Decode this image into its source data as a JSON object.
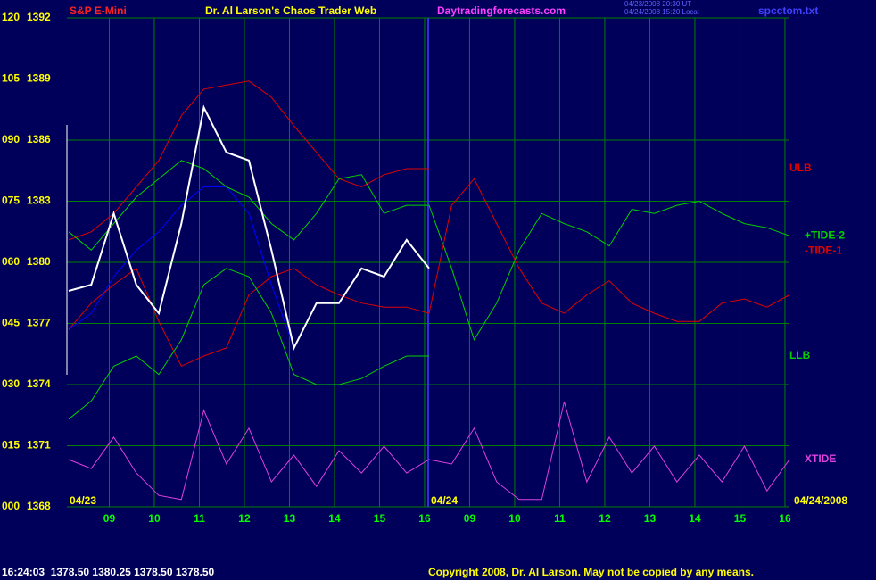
{
  "chart_data": {
    "type": "line",
    "title": "Dr. Al Larson's Chaos Trader Web",
    "subtitle": "S&P E-Mini",
    "site": "Daytradingforecasts.com",
    "timestamps": [
      "04/23/2008 20:30 UT",
      "04/24/2008 15:20 Local"
    ],
    "file": "spcctom.txt",
    "annotations": [
      "04/23",
      "04/24",
      "04/24/2008"
    ],
    "status": "16:24:03  1378.50 1380.25 1378.50 1378.50",
    "copyright": "Copyright 2008, Dr. Al Larson. May not be copied by any means.",
    "x": [
      8.1,
      8.6,
      9.1,
      9.6,
      10.1,
      10.6,
      11.1,
      11.6,
      12.1,
      12.6,
      13.1,
      13.6,
      14.1,
      14.6,
      15.1,
      15.6,
      16.1,
      16.6,
      17.1,
      17.6,
      18.1,
      18.6,
      19.1,
      19.6,
      20.1,
      20.6,
      21.1,
      21.6,
      22.1,
      22.6,
      23.1,
      23.6,
      24.1
    ],
    "xlim": [
      8.06,
      24.1
    ],
    "xticks": [
      {
        "value": 9,
        "label": "09"
      },
      10,
      11,
      12,
      13,
      14,
      15,
      16,
      {
        "value": 17,
        "label": "09"
      },
      {
        "value": 18,
        "label": "10"
      },
      {
        "value": 19,
        "label": "11"
      },
      {
        "value": 20,
        "label": "12"
      },
      {
        "value": 21,
        "label": "13"
      },
      {
        "value": 22,
        "label": "14"
      },
      {
        "value": 23,
        "label": "15"
      },
      {
        "value": 24,
        "label": "16"
      }
    ],
    "ylim": [
      0,
      120
    ],
    "yticks": [
      {
        "value": 0,
        "label": "000"
      },
      {
        "value": 15,
        "label": "015"
      },
      {
        "value": 30,
        "label": "030"
      },
      {
        "value": 45,
        "label": "045"
      },
      {
        "value": 60,
        "label": "060"
      },
      {
        "value": 75,
        "label": "075"
      },
      {
        "value": 90,
        "label": "090"
      },
      105,
      120
    ],
    "y2lim": [
      1368,
      1392
    ],
    "y2ticks": [
      1368,
      1371,
      1374,
      1377,
      1380,
      1383,
      1386,
      1389,
      1392
    ],
    "grid": true,
    "grid_color": "#008000",
    "series": [
      {
        "axis": "y2",
        "color": "#0000ff",
        "values": [
          1376.7,
          1377.5,
          1379.3,
          1380.6,
          1381.5,
          1382.8,
          1383.7,
          1383.7,
          1382.4,
          1378.9,
          1375.8,
          null,
          null,
          null,
          null,
          null,
          null,
          null,
          null,
          null,
          null,
          null,
          null,
          null,
          null,
          null,
          null,
          null,
          null,
          null,
          null,
          null,
          null
        ]
      },
      {
        "name": "ULB",
        "axis": "y2",
        "color": "#e00000",
        "values": [
          1381.1,
          1381.5,
          1382.4,
          1383.7,
          1385.0,
          1387.2,
          1388.5,
          1388.7,
          1388.9,
          1388.1,
          1386.7,
          1385.4,
          1384.1,
          1383.7,
          1384.3,
          1384.6,
          1384.6,
          null,
          null,
          null,
          null,
          null,
          null,
          null,
          null,
          null,
          null,
          null,
          null,
          null,
          null,
          null,
          null
        ]
      },
      {
        "name": "+TIDE-2",
        "axis": "y2",
        "color": "#00d000",
        "values": [
          1381.5,
          1380.6,
          1381.9,
          1383.2,
          1384.1,
          1385.0,
          1384.6,
          1383.7,
          1383.2,
          1381.9,
          1381.1,
          1382.4,
          1384.1,
          1384.3,
          1382.4,
          1382.8,
          1382.8,
          1379.7,
          1376.2,
          1378.0,
          1380.6,
          1382.4,
          1381.9,
          1381.5,
          1380.8,
          1382.6,
          1382.4,
          1382.8,
          1383.0,
          1382.4,
          1381.9,
          1381.7,
          1381.3
        ]
      },
      {
        "name": "-TIDE-1",
        "axis": "y2",
        "color": "#e00000",
        "values": [
          1376.7,
          1378.0,
          1378.9,
          1379.7,
          1377.1,
          1374.9,
          1375.4,
          1375.8,
          1378.4,
          1379.3,
          1379.7,
          1378.9,
          1378.4,
          1378.0,
          1377.8,
          1377.8,
          1377.5,
          1382.8,
          1384.1,
          1381.9,
          1379.7,
          1378.0,
          1377.5,
          1378.4,
          1379.1,
          1378.0,
          1377.5,
          1377.1,
          1377.1,
          1378.0,
          1378.2,
          1377.8,
          1378.4
        ]
      },
      {
        "name": "LLB",
        "axis": "y2",
        "color": "#00d000",
        "values": [
          1372.3,
          1373.2,
          1374.9,
          1375.4,
          1374.5,
          1376.2,
          1378.9,
          1379.7,
          1379.3,
          1377.5,
          1374.5,
          1374.0,
          1374.0,
          1374.3,
          1374.9,
          1375.4,
          1375.4,
          null,
          null,
          null,
          null,
          null,
          null,
          null,
          null,
          null,
          null,
          null,
          null,
          null,
          null,
          null,
          null
        ]
      },
      {
        "axis": "y2",
        "color": "#ffffff",
        "values": [
          1378.6,
          1378.9,
          1382.4,
          1378.9,
          1377.5,
          1381.9,
          1387.6,
          1385.4,
          1385.0,
          1380.6,
          1375.8,
          1378.0,
          1378.0,
          1379.7,
          1379.3,
          1381.1,
          1379.7,
          null,
          null,
          null,
          null,
          null,
          null,
          null,
          null,
          null,
          null,
          null,
          null,
          null,
          null,
          null,
          null
        ]
      },
      {
        "name": "XTIDE",
        "axis": "y",
        "color": "#e040e0",
        "values": [
          11.6,
          9.4,
          17.1,
          8.3,
          2.8,
          1.8,
          23.7,
          10.5,
          19.3,
          6.1,
          12.7,
          5.0,
          13.8,
          8.3,
          14.9,
          8.3,
          11.6,
          10.5,
          19.3,
          6.1,
          1.8,
          1.8,
          25.8,
          6.1,
          17.1,
          8.3,
          14.9,
          6.1,
          12.7,
          6.1,
          14.9,
          3.9,
          11.6
        ]
      }
    ]
  }
}
